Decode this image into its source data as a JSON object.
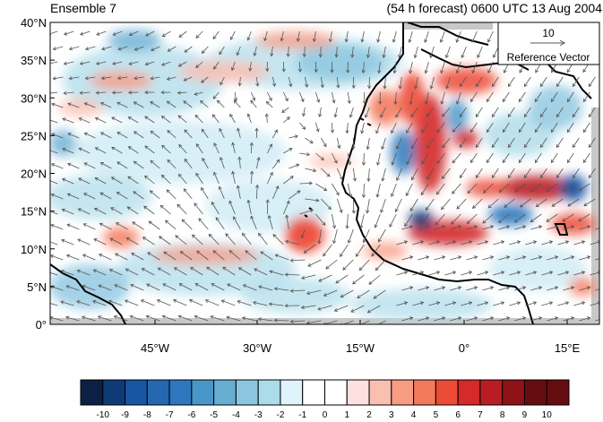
{
  "title_left": "Ensemble 7",
  "title_right": "(54 h forecast) 0600 UTC 13 Aug 2004",
  "reference_vector": {
    "value": "10",
    "label": "Reference Vector"
  },
  "axes": {
    "lat_ticks": [
      "0°",
      "5°N",
      "10°N",
      "15°N",
      "20°N",
      "25°N",
      "30°N",
      "35°N",
      "40°N"
    ],
    "lon_ticks": [
      "45°W",
      "30°W",
      "15°W",
      "0°",
      "15°E"
    ]
  },
  "colorbar": {
    "labels": [
      "-10",
      "-9",
      "-8",
      "-7",
      "-6",
      "-5",
      "-4",
      "-3",
      "-2",
      "-1",
      "0",
      "1",
      "2",
      "3",
      "4",
      "5",
      "6",
      "7",
      "8",
      "9",
      "10"
    ],
    "colors": [
      "#0c2045",
      "#0e3a77",
      "#1855a3",
      "#2468b0",
      "#2d78bd",
      "#4996c8",
      "#68aed3",
      "#8cc5e0",
      "#acdbe9",
      "#dff3fb",
      "#ffffff",
      "#ffffff",
      "#fde0df",
      "#fbbfb0",
      "#f99c84",
      "#f47a5e",
      "#ec4b36",
      "#d42a29",
      "#b91d23",
      "#8f1217",
      "#650d10"
    ]
  },
  "colors": {
    "land_gray": "#c8c8c8",
    "coast": "#000000",
    "vector": "#555555"
  }
}
